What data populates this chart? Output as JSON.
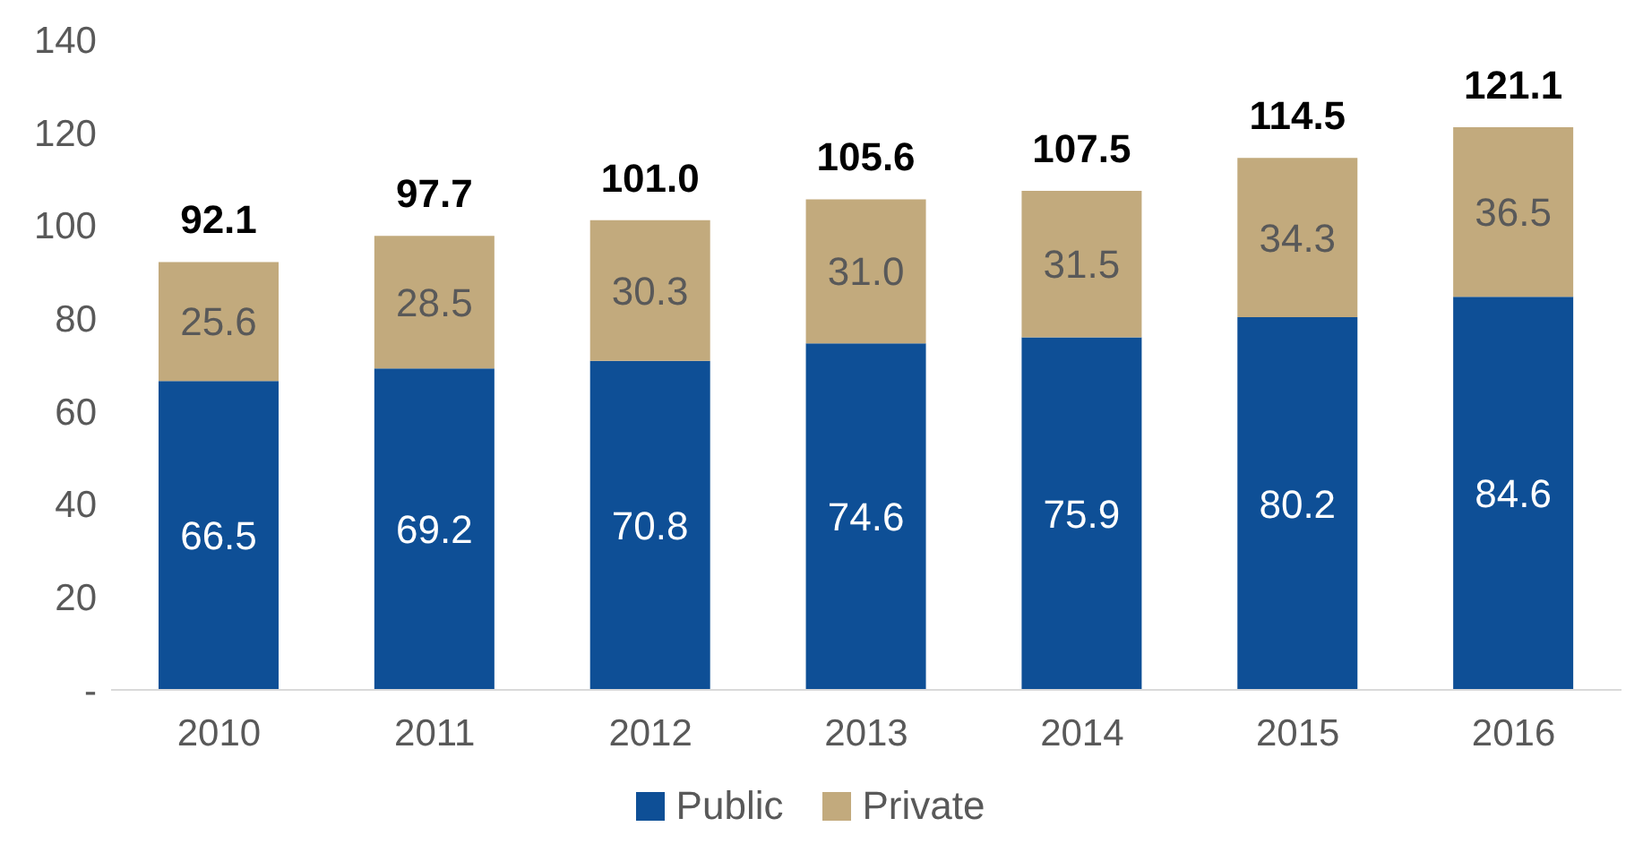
{
  "chart_data": {
    "type": "bar",
    "stacked": true,
    "categories": [
      "2010",
      "2011",
      "2012",
      "2013",
      "2014",
      "2015",
      "2016"
    ],
    "series": [
      {
        "name": "Public",
        "color": "#0e4f96",
        "values": [
          66.5,
          69.2,
          70.8,
          74.6,
          75.9,
          80.2,
          84.6
        ],
        "value_labels": [
          "66.5",
          "69.2",
          "70.8",
          "74.6",
          "75.9",
          "80.2",
          "84.6"
        ]
      },
      {
        "name": "Private",
        "color": "#c2aa7d",
        "values": [
          25.6,
          28.5,
          30.3,
          31.0,
          31.5,
          34.3,
          36.5
        ],
        "value_labels": [
          "25.6",
          "28.5",
          "30.3",
          "31.0",
          "31.5",
          "34.3",
          "36.5"
        ]
      }
    ],
    "ylim": [
      0,
      140
    ],
    "yticks": [
      {
        "value": 0,
        "label": "-"
      },
      20,
      40,
      60,
      80,
      100,
      120,
      140
    ],
    "totals": [
      "92.1",
      "97.7",
      "101.0",
      "105.6",
      "107.5",
      "114.5",
      "121.1"
    ],
    "legend": "bottom"
  }
}
